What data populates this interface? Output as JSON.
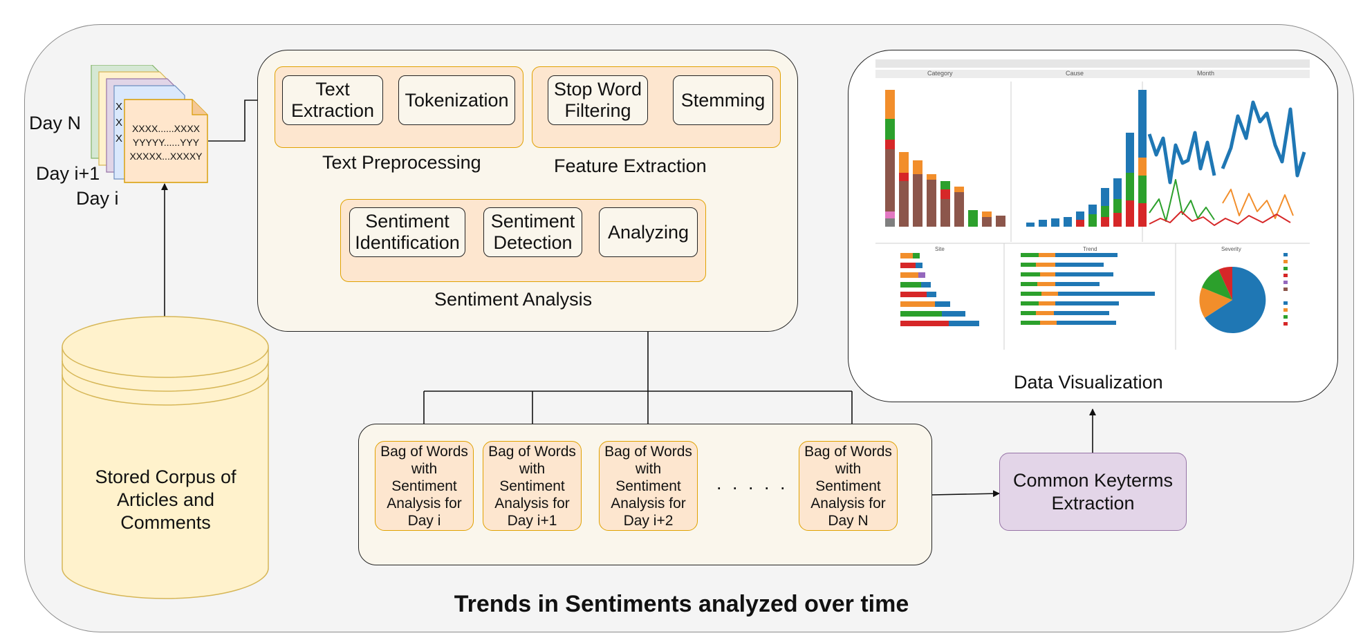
{
  "corpus": {
    "days": [
      "Day N",
      "Day i+1",
      "Day i"
    ],
    "doc_lines": [
      "XXXX......XXXX",
      "YYYYY......YYY",
      "XXXXX...XXXXY"
    ],
    "doc_stub": [
      "X",
      "X",
      "X"
    ],
    "database_label": "Stored Corpus of\nArticles and\nComments"
  },
  "pipeline": {
    "text_preprocessing": {
      "label": "Text Preprocessing",
      "steps": [
        "Text\nExtraction",
        "Tokenization"
      ]
    },
    "feature_extraction": {
      "label": "Feature Extraction",
      "steps": [
        "Stop Word\nFiltering",
        "Stemming"
      ]
    },
    "sentiment_analysis": {
      "label": "Sentiment Analysis",
      "steps": [
        "Sentiment\nIdentification",
        "Sentiment\nDetection",
        "Analyzing"
      ]
    }
  },
  "bags": [
    "Bag of Words\nwith\nSentiment\nAnalysis for\nDay i",
    "Bag of Words\nwith\nSentiment\nAnalysis for\nDay i+1",
    "Bag of Words\nwith\nSentiment\nAnalysis for\nDay i+2",
    "Bag of Words\nwith\nSentiment\nAnalysis for\nDay N"
  ],
  "ellipsis": ". . . . .",
  "keyterms_label": "Common Keyterms\nExtraction",
  "visualization": {
    "label": "Data Visualization",
    "dashboard_headers": [
      "Category",
      "Cause",
      "Month"
    ],
    "bottom_headers": [
      "Site",
      "Trend",
      "Severity"
    ]
  },
  "footer_title": "Trends in Sentiments analyzed over time",
  "colors": {
    "panel_fill": "#faf6ec",
    "group_fill": "#fde6cf",
    "group_border": "#e0a100",
    "keyterms_fill": "#e3d5e8",
    "keyterms_border": "#9673a6",
    "database_fill": "#fff2cc",
    "database_border": "#d6b656"
  }
}
